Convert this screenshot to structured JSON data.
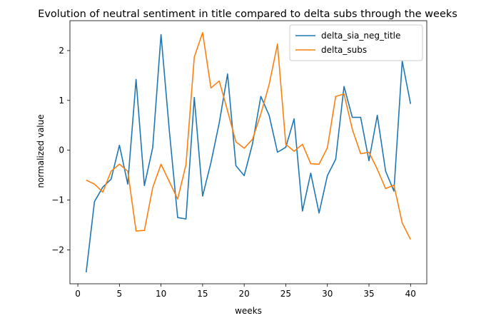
{
  "chart_data": {
    "type": "line",
    "title": "Evolution of neutral sentiment in title compared to delta subs through the weeks",
    "xlabel": "weeks",
    "ylabel": "normalized value",
    "xlim": [
      -0.95,
      41.95
    ],
    "ylim": [
      -2.68,
      2.6
    ],
    "xticks": [
      0,
      5,
      10,
      15,
      20,
      25,
      30,
      35,
      40
    ],
    "yticks": [
      -2,
      -1,
      0,
      1,
      2
    ],
    "ytick_labels": [
      "−2",
      "−1",
      "0",
      "1",
      "2"
    ],
    "grid": false,
    "legend_position": "top-right",
    "x": [
      1,
      2,
      3,
      4,
      5,
      6,
      7,
      8,
      9,
      10,
      11,
      12,
      13,
      14,
      15,
      16,
      17,
      18,
      19,
      20,
      21,
      22,
      23,
      24,
      25,
      26,
      27,
      28,
      29,
      30,
      31,
      32,
      33,
      34,
      35,
      36,
      37,
      38,
      39,
      40
    ],
    "series": [
      {
        "name": "delta_sia_neg_title",
        "color": "#1f77b4",
        "values": [
          -2.45,
          -1.03,
          -0.74,
          -0.58,
          0.1,
          -0.68,
          1.42,
          -0.71,
          0.05,
          2.32,
          0.39,
          -1.35,
          -1.38,
          1.06,
          -0.92,
          -0.25,
          0.55,
          1.53,
          -0.31,
          -0.51,
          0.13,
          1.08,
          0.7,
          -0.04,
          0.06,
          0.63,
          -1.22,
          -0.46,
          -1.26,
          -0.51,
          -0.18,
          1.28,
          0.66,
          0.66,
          -0.21,
          0.7,
          -0.42,
          -0.82,
          1.79,
          0.93
        ]
      },
      {
        "name": "delta_subs",
        "color": "#ff7f0e",
        "values": [
          -0.6,
          -0.68,
          -0.84,
          -0.42,
          -0.28,
          -0.42,
          -1.62,
          -1.61,
          -0.75,
          -0.28,
          -0.63,
          -0.98,
          -0.29,
          1.87,
          2.36,
          1.25,
          1.39,
          0.79,
          0.17,
          0.04,
          0.22,
          0.73,
          1.32,
          2.13,
          0.12,
          -0.02,
          0.12,
          -0.27,
          -0.28,
          0.05,
          1.08,
          1.13,
          0.42,
          -0.07,
          -0.04,
          -0.38,
          -0.77,
          -0.7,
          -1.46,
          -1.79
        ]
      }
    ]
  }
}
